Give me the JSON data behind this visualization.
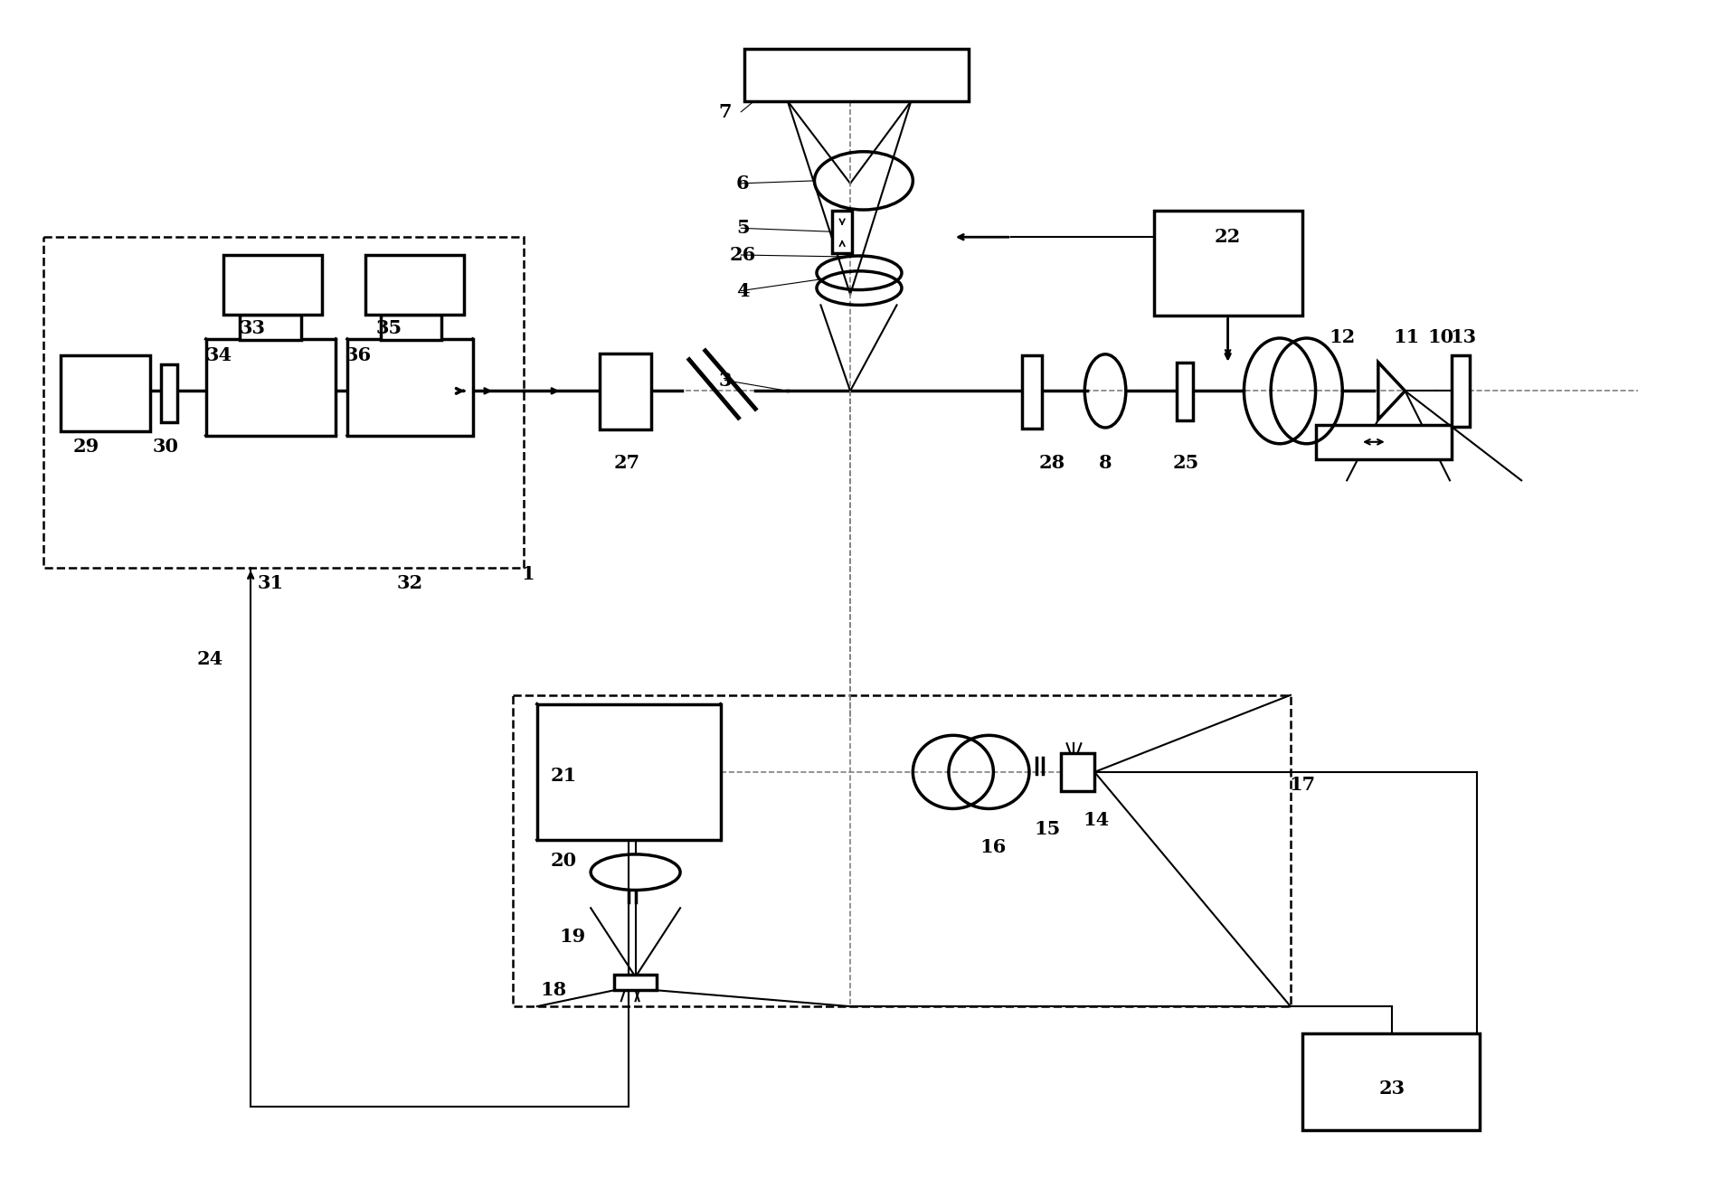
{
  "bg": "#ffffff",
  "lc": "#000000",
  "fw": 18.94,
  "fh": 13.14,
  "dpi": 100
}
